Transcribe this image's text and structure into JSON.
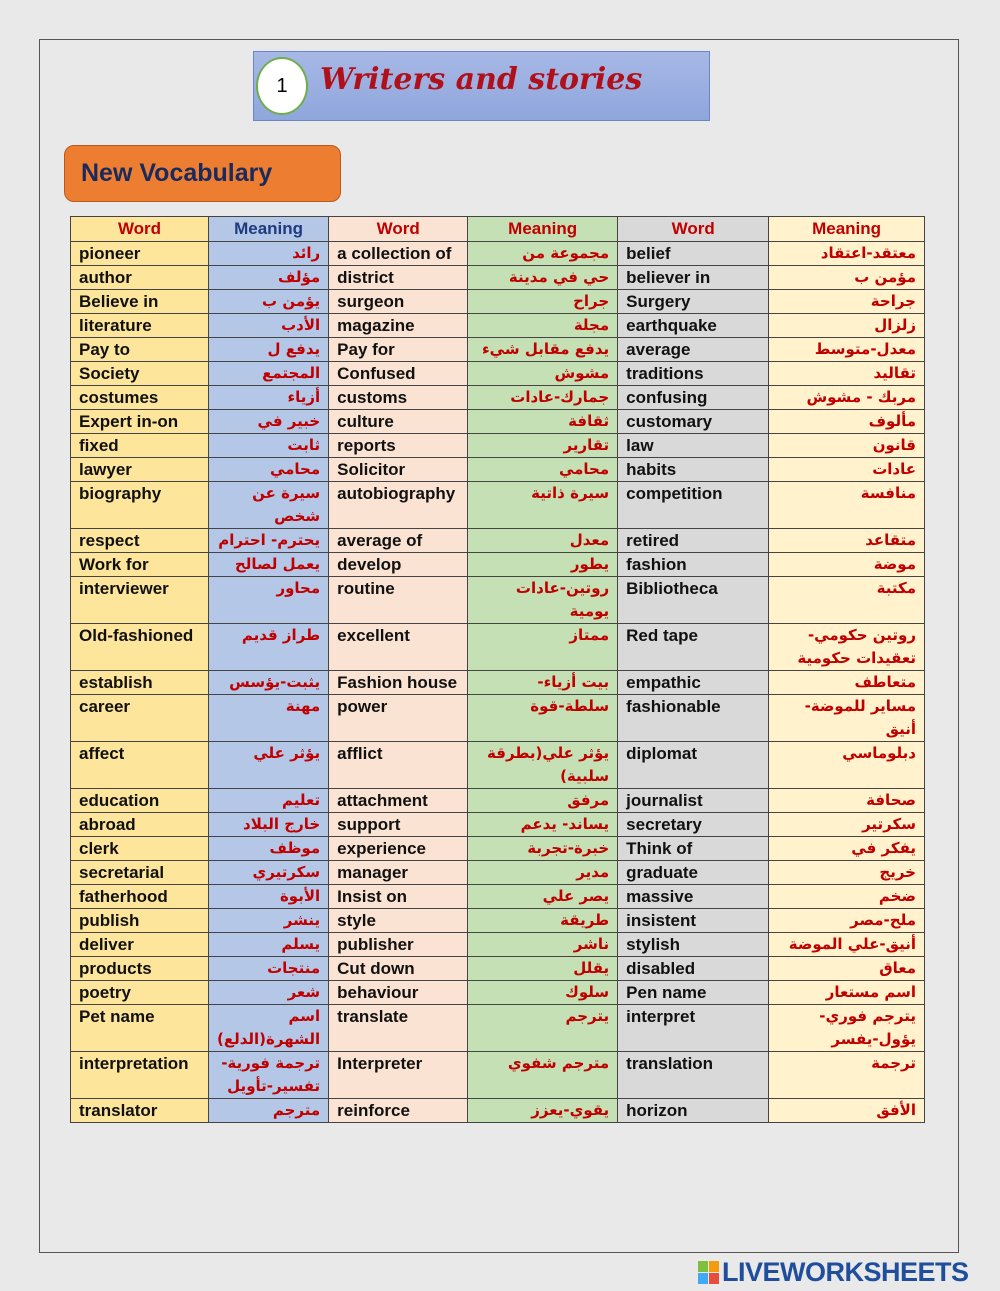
{
  "header": {
    "unit_number": "1",
    "title": "Writers and stories"
  },
  "section_label": "New Vocabulary",
  "table": {
    "headers": [
      "Word",
      "Meaning",
      "Word",
      "Meaning",
      "Word",
      "Meaning"
    ],
    "rows": [
      [
        "pioneer",
        "رائد",
        "a collection of",
        "مجموعة من",
        "belief",
        "معتقد-اعتقاد"
      ],
      [
        "author",
        "مؤلف",
        "district",
        "حي في مدينة",
        "believer in",
        "مؤمن ب"
      ],
      [
        "Believe in",
        "يؤمن ب",
        "surgeon",
        "جراح",
        "Surgery",
        "جراحة"
      ],
      [
        "literature",
        "الأدب",
        "magazine",
        "مجلة",
        "earthquake",
        "زلزال"
      ],
      [
        "Pay to",
        "يدفع ل",
        "Pay for",
        "يدفع مقابل شيء",
        "average",
        "معدل-متوسط"
      ],
      [
        "Society",
        "المجتمع",
        "Confused",
        "مشوش",
        "traditions",
        "تقاليد"
      ],
      [
        "costumes",
        "أزياء",
        "customs",
        "جمارك-عادات",
        "confusing",
        "مربك - مشوش"
      ],
      [
        "Expert in-on",
        "خبير في",
        "culture",
        "ثقافة",
        "customary",
        "مألوف"
      ],
      [
        "fixed",
        "ثابت",
        "reports",
        "تقارير",
        "law",
        "قانون"
      ],
      [
        "lawyer",
        "محامي",
        "Solicitor",
        "محامي",
        "habits",
        "عادات"
      ],
      [
        "biography",
        "سيرة عن شخص",
        "autobiography",
        "سيرة ذاتية",
        "competition",
        "منافسة"
      ],
      [
        "respect",
        "يحترم- احترام",
        "average of",
        "معدل",
        "retired",
        "متقاعد"
      ],
      [
        "Work for",
        "يعمل لصالح",
        "develop",
        "يطور",
        "fashion",
        "موضة"
      ],
      [
        "interviewer",
        "محاور",
        "routine",
        "روتين-عادات يومية",
        "Bibliotheca",
        "مكتبة"
      ],
      [
        "Old-fashioned",
        "طراز قديم",
        "excellent",
        "ممتاز",
        "Red tape",
        "روتين حكومي-تعقيدات حكومية"
      ],
      [
        "establish",
        "يثبت-يؤسس",
        "Fashion house",
        "بيت أزياء-",
        "empathic",
        "متعاطف"
      ],
      [
        "career",
        "مهنة",
        "power",
        "سلطة-قوة",
        "fashionable",
        "مساير للموضة-أنيق"
      ],
      [
        "affect",
        "يؤثر علي",
        "afflict",
        "يؤثر علي(بطرقة سلبية)",
        "diplomat",
        "دبلوماسي"
      ],
      [
        "education",
        "تعليم",
        "attachment",
        "مرفق",
        "journalist",
        "صحافة"
      ],
      [
        "abroad",
        "خارج البلاد",
        "support",
        "يساند- يدعم",
        "secretary",
        "سكرتير"
      ],
      [
        "clerk",
        "موظف",
        "experience",
        "خبرة-تجربة",
        "Think of",
        "يفكر في"
      ],
      [
        "secretarial",
        "سكرتيري",
        "manager",
        "مدير",
        "graduate",
        "خريج"
      ],
      [
        "fatherhood",
        "الأبوة",
        "Insist on",
        "يصر علي",
        "massive",
        "ضخم"
      ],
      [
        "publish",
        "ينشر",
        "style",
        "طريقة",
        "insistent",
        "ملح-مصر"
      ],
      [
        "deliver",
        "يسلم",
        "publisher",
        "ناشر",
        "stylish",
        "أنيق-علي الموضة"
      ],
      [
        "products",
        "منتجات",
        "Cut down",
        "يقلل",
        "disabled",
        "معاق"
      ],
      [
        "poetry",
        "شعر",
        "behaviour",
        "سلوك",
        "Pen name",
        "اسم مستعار"
      ],
      [
        "Pet name",
        "اسم الشهرة(الدلع)",
        "translate",
        "يترجم",
        "interpret",
        "يترجم فوري-يؤول-يفسر"
      ],
      [
        "interpretation",
        "ترجمة فورية-تفسير-تأويل",
        "Interpreter",
        "مترجم شفوي",
        "translation",
        "ترجمة"
      ],
      [
        "translator",
        "مترجم",
        "reinforce",
        "يقوي-يعزز",
        "horizon",
        "الأفق"
      ]
    ],
    "tall_rows": [
      10,
      14,
      17,
      27,
      28
    ]
  },
  "footer": {
    "brand": "LIVEWORKSHEETS"
  }
}
